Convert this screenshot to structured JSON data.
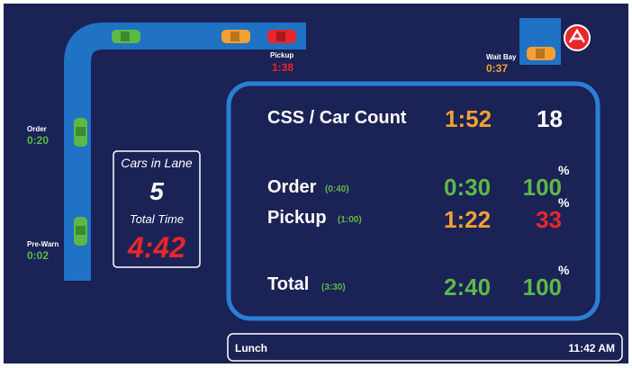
{
  "lane": {
    "pickup": {
      "label": "Pickup",
      "time": "1:38"
    },
    "wait_bay": {
      "label": "Wait Bay",
      "time": "0:37"
    },
    "order": {
      "label": "Order",
      "time": "0:20"
    },
    "pre_warn": {
      "label": "Pre-Warn",
      "time": "0:02"
    }
  },
  "lane_box": {
    "cars_label": "Cars in Lane",
    "cars": "5",
    "total_label": "Total Time",
    "total": "4:42"
  },
  "panel": {
    "header": {
      "label": "CSS / Car Count",
      "time": "1:52",
      "count": "18"
    },
    "rows": [
      {
        "label": "Order",
        "goal": "(0:40)",
        "time": "0:30",
        "percent": "100",
        "unit": "%"
      },
      {
        "label": "Pickup",
        "goal": "(1:00)",
        "time": "1:22",
        "percent": "33",
        "unit": "%"
      },
      {
        "label": "Total",
        "goal": "(3:30)",
        "time": "2:40",
        "percent": "100",
        "unit": "%"
      }
    ]
  },
  "footer": {
    "daypart": "Lunch",
    "clock": "11:42 AM"
  }
}
